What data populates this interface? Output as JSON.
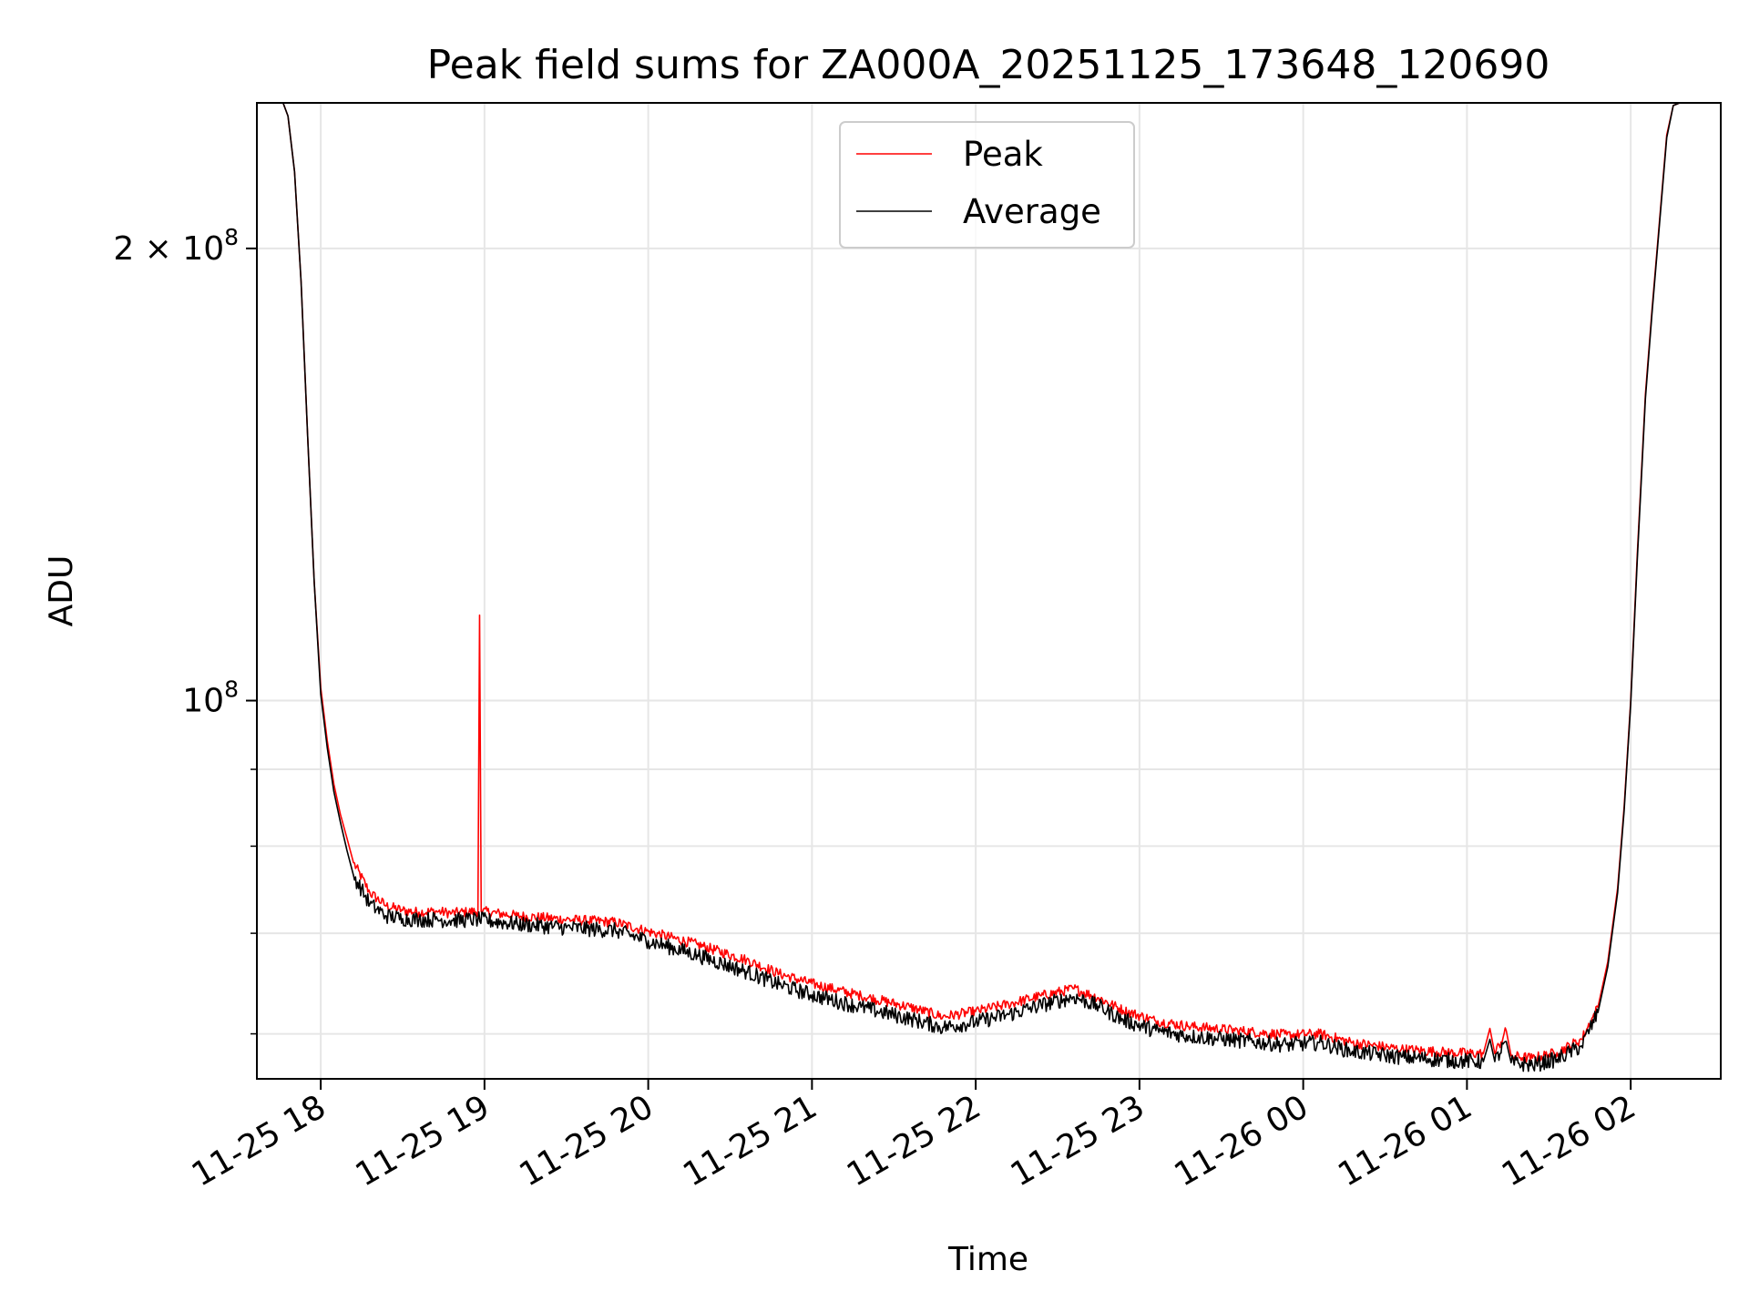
{
  "chart_data": {
    "type": "line",
    "title": "Peak field sums for ZA000A_20251125_173648_120690",
    "xlabel": "Time",
    "ylabel": "ADU",
    "yscale": "log",
    "ylim": [
      56000000,
      250000000
    ],
    "xlim_hours_from_1700": [
      0.61,
      9.55
    ],
    "grid": true,
    "legend_position": "top-center",
    "x_ticks": [
      {
        "label": "11-25 18",
        "hours_from_1700": 1
      },
      {
        "label": "11-25 19",
        "hours_from_1700": 2
      },
      {
        "label": "11-25 20",
        "hours_from_1700": 3
      },
      {
        "label": "11-25 21",
        "hours_from_1700": 4
      },
      {
        "label": "11-25 22",
        "hours_from_1700": 5
      },
      {
        "label": "11-25 23",
        "hours_from_1700": 6
      },
      {
        "label": "11-26 00",
        "hours_from_1700": 7
      },
      {
        "label": "11-26 01",
        "hours_from_1700": 8
      },
      {
        "label": "11-26 02",
        "hours_from_1700": 9
      }
    ],
    "y_ticks": [
      {
        "base": "2 × 10",
        "exp": "8",
        "value": 200000000
      },
      {
        "base": "10",
        "exp": "8",
        "value": 100000000
      }
    ],
    "y_minor_ticks": [
      60000000,
      70000000,
      80000000,
      90000000
    ],
    "series": [
      {
        "name": "Peak",
        "color": "#ff0000",
        "points": [
          [
            0.61,
            250000000
          ],
          [
            0.77,
            250000000
          ],
          [
            0.8,
            245000000
          ],
          [
            0.84,
            225000000
          ],
          [
            0.88,
            190000000
          ],
          [
            0.92,
            150000000
          ],
          [
            0.96,
            120000000
          ],
          [
            1.0,
            102000000
          ],
          [
            1.04,
            94000000
          ],
          [
            1.08,
            88000000
          ],
          [
            1.12,
            84000000
          ],
          [
            1.16,
            81000000
          ],
          [
            1.2,
            78000000
          ],
          [
            1.3,
            74500000
          ],
          [
            1.4,
            73000000
          ],
          [
            1.5,
            72500000
          ],
          [
            1.6,
            72300000
          ],
          [
            1.7,
            72400000
          ],
          [
            1.8,
            72200000
          ],
          [
            1.96,
            72400000
          ],
          [
            1.97,
            114000000
          ],
          [
            1.98,
            72400000
          ],
          [
            2.2,
            71900000
          ],
          [
            2.5,
            71500000
          ],
          [
            2.8,
            71200000
          ],
          [
            3.0,
            70200000
          ],
          [
            3.3,
            68800000
          ],
          [
            3.6,
            67200000
          ],
          [
            3.8,
            65800000
          ],
          [
            4.0,
            64800000
          ],
          [
            4.3,
            63600000
          ],
          [
            4.6,
            62500000
          ],
          [
            4.8,
            61600000
          ],
          [
            5.0,
            62100000
          ],
          [
            5.2,
            62800000
          ],
          [
            5.4,
            63600000
          ],
          [
            5.6,
            64300000
          ],
          [
            5.75,
            63400000
          ],
          [
            5.9,
            62200000
          ],
          [
            6.1,
            61200000
          ],
          [
            6.3,
            60700000
          ],
          [
            6.6,
            60300000
          ],
          [
            6.9,
            59900000
          ],
          [
            7.1,
            60000000
          ],
          [
            7.3,
            59200000
          ],
          [
            7.6,
            58600000
          ],
          [
            7.9,
            58300000
          ],
          [
            8.1,
            58200000
          ],
          [
            8.14,
            60500000
          ],
          [
            8.17,
            58200000
          ],
          [
            8.24,
            60300000
          ],
          [
            8.27,
            58000000
          ],
          [
            8.4,
            57800000
          ],
          [
            8.55,
            58300000
          ],
          [
            8.7,
            59500000
          ],
          [
            8.8,
            62500000
          ],
          [
            8.86,
            67000000
          ],
          [
            8.92,
            75000000
          ],
          [
            8.96,
            85000000
          ],
          [
            9.0,
            100000000
          ],
          [
            9.04,
            125000000
          ],
          [
            9.09,
            160000000
          ],
          [
            9.13,
            182000000
          ],
          [
            9.17,
            205000000
          ],
          [
            9.22,
            238000000
          ],
          [
            9.26,
            249000000
          ],
          [
            9.3,
            250000000
          ],
          [
            9.55,
            250000000
          ]
        ]
      },
      {
        "name": "Average",
        "color": "#000000",
        "points": [
          [
            0.61,
            250000000
          ],
          [
            0.77,
            250000000
          ],
          [
            0.8,
            245000000
          ],
          [
            0.84,
            225000000
          ],
          [
            0.88,
            190000000
          ],
          [
            0.92,
            150000000
          ],
          [
            0.96,
            120000000
          ],
          [
            1.0,
            101000000
          ],
          [
            1.04,
            93000000
          ],
          [
            1.08,
            87000000
          ],
          [
            1.12,
            83000000
          ],
          [
            1.16,
            79500000
          ],
          [
            1.2,
            76500000
          ],
          [
            1.3,
            73200000
          ],
          [
            1.4,
            71900000
          ],
          [
            1.5,
            71600000
          ],
          [
            1.6,
            71500000
          ],
          [
            1.7,
            71500000
          ],
          [
            1.8,
            71400000
          ],
          [
            1.96,
            71500000
          ],
          [
            2.2,
            71000000
          ],
          [
            2.5,
            70600000
          ],
          [
            2.8,
            70300000
          ],
          [
            3.0,
            69200000
          ],
          [
            3.3,
            67700000
          ],
          [
            3.6,
            66000000
          ],
          [
            3.8,
            64700000
          ],
          [
            4.0,
            63700000
          ],
          [
            4.3,
            62500000
          ],
          [
            4.6,
            61400000
          ],
          [
            4.8,
            60600000
          ],
          [
            5.0,
            61100000
          ],
          [
            5.2,
            61800000
          ],
          [
            5.4,
            62700000
          ],
          [
            5.6,
            63500000
          ],
          [
            5.75,
            62600000
          ],
          [
            5.9,
            61300000
          ],
          [
            6.1,
            60300000
          ],
          [
            6.3,
            59800000
          ],
          [
            6.6,
            59400000
          ],
          [
            6.9,
            59000000
          ],
          [
            7.1,
            59200000
          ],
          [
            7.3,
            58400000
          ],
          [
            7.6,
            57900000
          ],
          [
            7.9,
            57600000
          ],
          [
            8.1,
            57500000
          ],
          [
            8.14,
            59500000
          ],
          [
            8.17,
            57500000
          ],
          [
            8.24,
            59300000
          ],
          [
            8.27,
            57400000
          ],
          [
            8.4,
            57200000
          ],
          [
            8.55,
            57700000
          ],
          [
            8.7,
            58900000
          ],
          [
            8.8,
            62000000
          ],
          [
            8.86,
            66500000
          ],
          [
            8.92,
            74500000
          ],
          [
            8.96,
            84500000
          ],
          [
            9.0,
            99500000
          ],
          [
            9.04,
            124000000
          ],
          [
            9.09,
            159000000
          ],
          [
            9.13,
            181000000
          ],
          [
            9.17,
            204000000
          ],
          [
            9.22,
            237000000
          ],
          [
            9.26,
            249000000
          ],
          [
            9.3,
            250000000
          ],
          [
            9.55,
            250000000
          ]
        ]
      }
    ]
  }
}
